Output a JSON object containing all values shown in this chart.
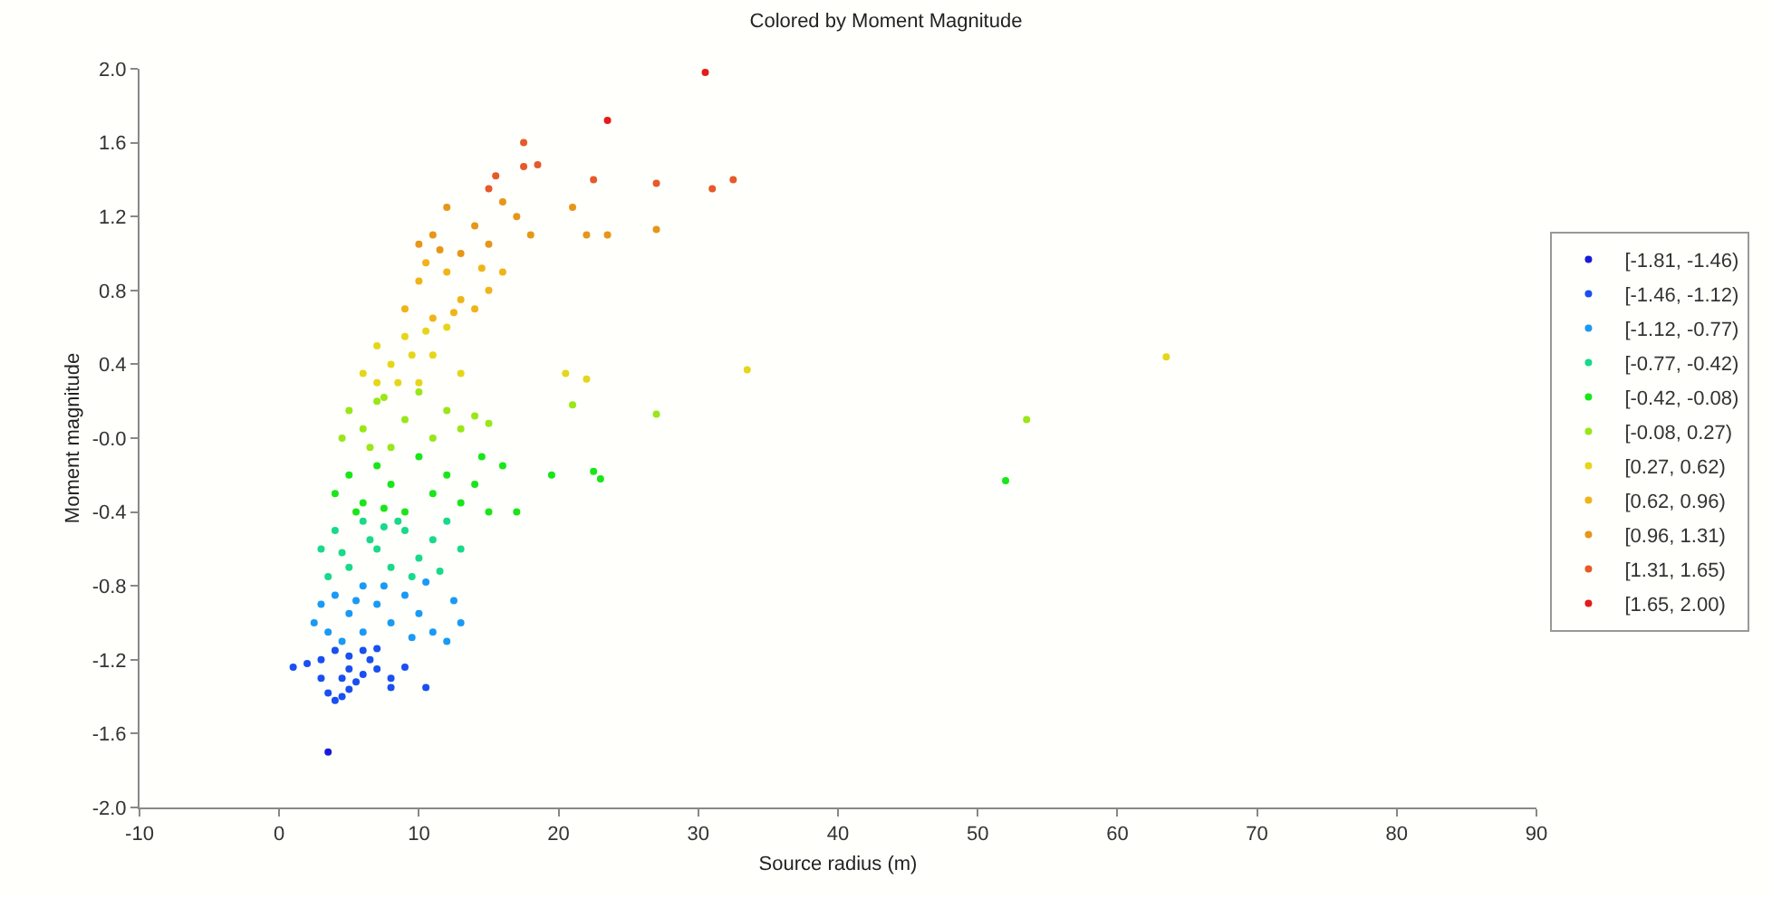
{
  "chart_data": {
    "type": "scatter",
    "title": "Colored by Moment Magnitude",
    "xlabel": "Source radius (m)",
    "ylabel": "Moment magnitude",
    "xlim": [
      -10,
      90
    ],
    "ylim": [
      -2.0,
      2.0
    ],
    "xticks": [
      -10,
      0,
      10,
      20,
      30,
      40,
      50,
      60,
      70,
      80,
      90
    ],
    "yticks": [
      {
        "value": -2.0,
        "label": "-2.0"
      },
      {
        "value": -1.6,
        "label": "-1.6"
      },
      {
        "value": -1.2,
        "label": "-1.2"
      },
      {
        "value": -0.8,
        "label": "-0.8"
      },
      {
        "value": -0.4,
        "label": "-0.4"
      },
      {
        "value": 0,
        "label": "-0.0"
      },
      {
        "value": 0.4,
        "label": "0.4"
      },
      {
        "value": 0.8,
        "label": "0.8"
      },
      {
        "value": 1.2,
        "label": "1.2"
      },
      {
        "value": 1.6,
        "label": "1.6"
      },
      {
        "value": 2.0,
        "label": "2.0"
      }
    ],
    "legend": "right",
    "marker": "circle",
    "series": [
      {
        "name": "[-1.81, -1.46)",
        "color": "#1a1adb",
        "x": [
          3.5
        ],
        "values": [
          -1.7
        ]
      },
      {
        "name": "[-1.46, -1.12)",
        "color": "#1a4ff0",
        "x": [
          1,
          2,
          3,
          3.5,
          4,
          4.5,
          5,
          5.5,
          6,
          7,
          8,
          9,
          10.5,
          4,
          5,
          6,
          7,
          3,
          5,
          6.5,
          8,
          4.5
        ],
        "values": [
          -1.24,
          -1.22,
          -1.3,
          -1.38,
          -1.42,
          -1.4,
          -1.36,
          -1.32,
          -1.28,
          -1.25,
          -1.3,
          -1.24,
          -1.35,
          -1.15,
          -1.18,
          -1.15,
          -1.14,
          -1.2,
          -1.25,
          -1.2,
          -1.35,
          -1.3
        ]
      },
      {
        "name": "[-1.12, -0.77)",
        "color": "#1a9af5",
        "x": [
          2.5,
          3,
          3.5,
          4,
          5,
          6,
          7,
          8,
          9,
          10,
          11,
          12,
          13,
          12.5,
          4.5,
          6,
          7.5,
          9.5,
          10.5,
          5.5
        ],
        "values": [
          -1.0,
          -0.9,
          -1.05,
          -0.85,
          -0.95,
          -0.8,
          -0.9,
          -1.0,
          -0.85,
          -0.95,
          -1.05,
          -1.1,
          -1.0,
          -0.88,
          -1.1,
          -1.05,
          -0.8,
          -1.08,
          -0.78,
          -0.88
        ]
      },
      {
        "name": "[-0.77, -0.42)",
        "color": "#19d98a",
        "x": [
          3,
          3.5,
          4,
          5,
          6,
          7,
          8,
          9,
          10,
          11,
          12,
          13,
          11.5,
          6.5,
          8.5,
          4.5,
          9.5,
          7.5
        ],
        "values": [
          -0.6,
          -0.75,
          -0.5,
          -0.7,
          -0.45,
          -0.6,
          -0.7,
          -0.5,
          -0.65,
          -0.55,
          -0.45,
          -0.6,
          -0.72,
          -0.55,
          -0.45,
          -0.62,
          -0.75,
          -0.48
        ]
      },
      {
        "name": "[-0.42, -0.08)",
        "color": "#19e619",
        "x": [
          4,
          5,
          6,
          7,
          8,
          9,
          10,
          11,
          12,
          13,
          14,
          15,
          16,
          17,
          19.5,
          22.5,
          23,
          52,
          14.5,
          5.5,
          7.5
        ],
        "values": [
          -0.3,
          -0.2,
          -0.35,
          -0.15,
          -0.25,
          -0.4,
          -0.1,
          -0.3,
          -0.2,
          -0.35,
          -0.25,
          -0.4,
          -0.15,
          -0.4,
          -0.2,
          -0.18,
          -0.22,
          -0.23,
          -0.1,
          -0.4,
          -0.38
        ]
      },
      {
        "name": "[-0.08, 0.27)",
        "color": "#9ae619",
        "x": [
          4.5,
          5,
          6,
          7,
          8,
          9,
          10,
          11,
          12,
          13,
          14,
          15,
          7.5,
          6.5,
          27,
          53.5,
          21
        ],
        "values": [
          0.0,
          0.15,
          0.05,
          0.2,
          -0.05,
          0.1,
          0.25,
          0.0,
          0.15,
          0.05,
          0.12,
          0.08,
          0.22,
          -0.05,
          0.13,
          0.1,
          0.18
        ]
      },
      {
        "name": "[0.27, 0.62)",
        "color": "#e6d619",
        "x": [
          6,
          7,
          8,
          9,
          10,
          11,
          12,
          13,
          8.5,
          9.5,
          20.5,
          22,
          33.5,
          63.5,
          7,
          10.5
        ],
        "values": [
          0.35,
          0.5,
          0.4,
          0.55,
          0.3,
          0.45,
          0.6,
          0.35,
          0.3,
          0.45,
          0.35,
          0.32,
          0.37,
          0.44,
          0.3,
          0.58
        ]
      },
      {
        "name": "[0.62, 0.96)",
        "color": "#f0b419",
        "x": [
          9,
          10,
          11,
          12,
          13,
          14,
          15,
          16,
          10.5,
          12.5,
          14.5
        ],
        "values": [
          0.7,
          0.85,
          0.65,
          0.9,
          0.75,
          0.7,
          0.8,
          0.9,
          0.95,
          0.68,
          0.92
        ]
      },
      {
        "name": "[0.96, 1.31)",
        "color": "#e69619",
        "x": [
          10,
          11,
          12,
          13,
          14,
          15,
          16,
          17,
          18,
          21,
          22,
          23.5,
          27,
          11.5
        ],
        "values": [
          1.05,
          1.1,
          1.25,
          1.0,
          1.15,
          1.05,
          1.28,
          1.2,
          1.1,
          1.25,
          1.1,
          1.1,
          1.13,
          1.02
        ]
      },
      {
        "name": "[1.31, 1.65)",
        "color": "#e65a2a",
        "x": [
          15.5,
          17.5,
          18.5,
          17.5,
          22.5,
          27,
          31,
          32.5,
          15
        ],
        "values": [
          1.42,
          1.47,
          1.48,
          1.6,
          1.4,
          1.38,
          1.35,
          1.4,
          1.35
        ]
      },
      {
        "name": "[1.65, 2.00)",
        "color": "#e61a1a",
        "x": [
          23.5,
          30.5
        ],
        "values": [
          1.72,
          1.98
        ]
      }
    ]
  }
}
